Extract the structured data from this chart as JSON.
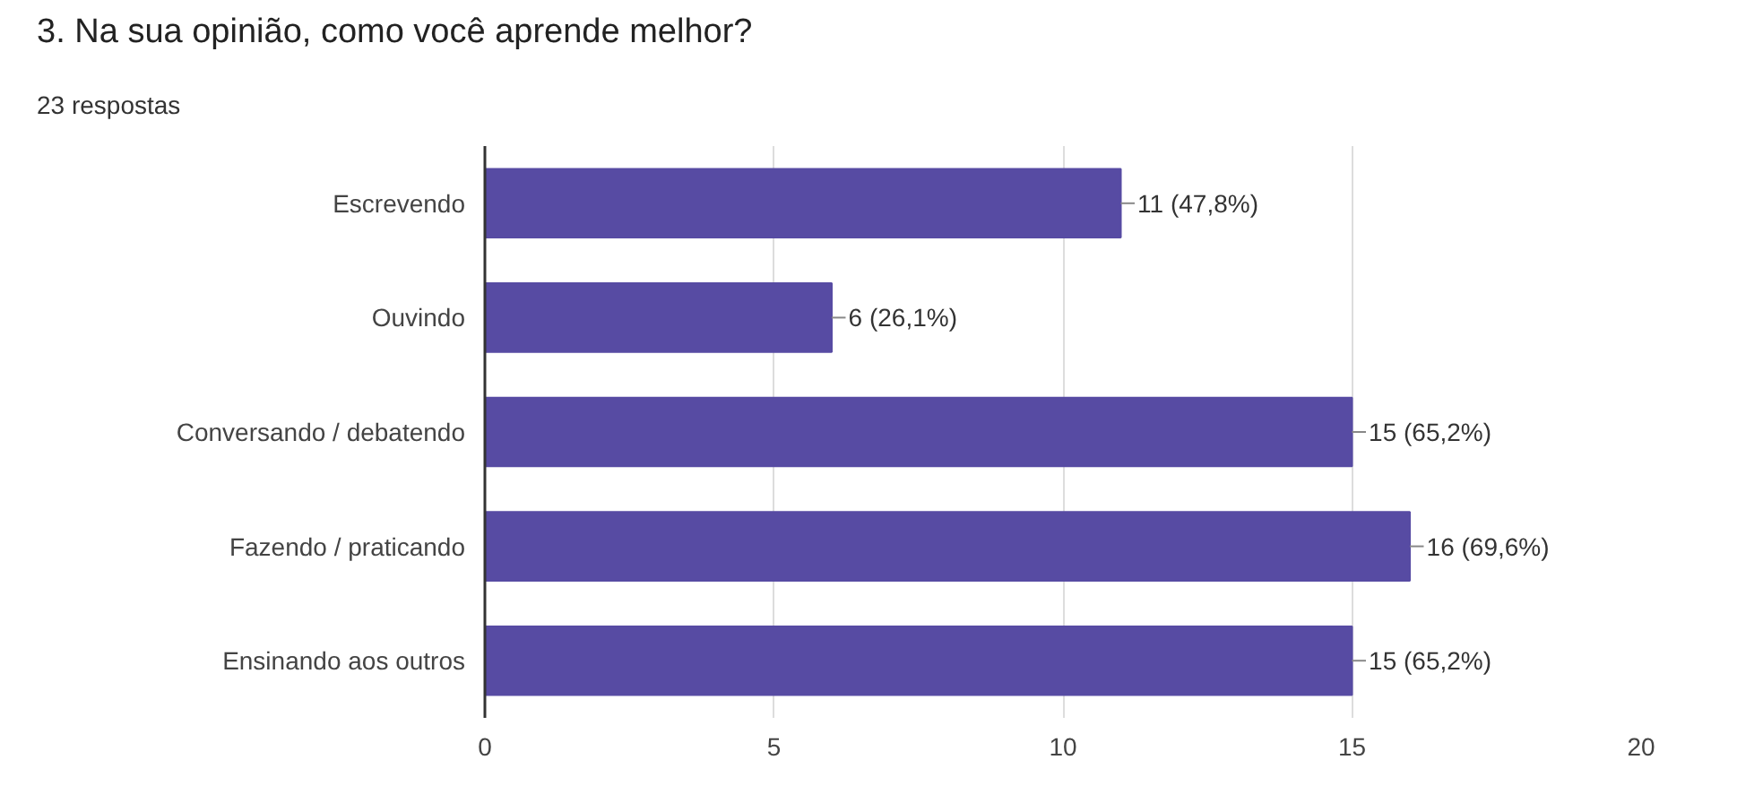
{
  "chart_data": {
    "type": "bar",
    "orientation": "horizontal",
    "title": "3. Na sua opinião, como você aprende melhor?",
    "subtitle": "23 respostas",
    "categories": [
      "Escrevendo",
      "Ouvindo",
      "Conversando / debatendo",
      "Fazendo / praticando",
      "Ensinando aos outros"
    ],
    "values": [
      11,
      6,
      15,
      16,
      15
    ],
    "value_labels": [
      "11 (47,8%)",
      "6 (26,1%)",
      "15 (65,2%)",
      "16 (69,6%)",
      "15 (65,2%)"
    ],
    "color": "#574ba3",
    "xlim": [
      0,
      20
    ],
    "xticks": [
      0,
      5,
      10,
      15,
      20
    ],
    "grid": "x"
  }
}
